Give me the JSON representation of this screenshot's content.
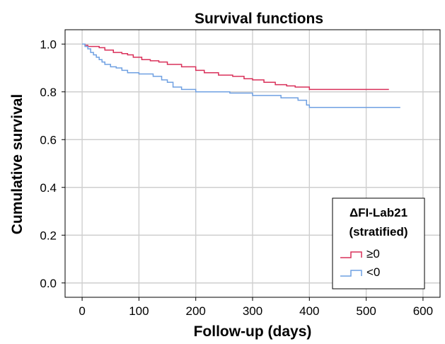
{
  "chart_data": {
    "type": "line",
    "title": "Survival functions",
    "xlabel": "Follow-up (days)",
    "ylabel": "Cumulative survival",
    "xlim": [
      -30,
      630
    ],
    "ylim": [
      -0.06,
      1.06
    ],
    "xticks": [
      0,
      100,
      200,
      300,
      400,
      500,
      600
    ],
    "yticks": [
      0.0,
      0.2,
      0.4,
      0.6,
      0.8,
      1.0
    ],
    "xtick_labels": [
      "0",
      "100",
      "200",
      "300",
      "400",
      "500",
      "600"
    ],
    "ytick_labels": [
      "0.0",
      "0.2",
      "0.4",
      "0.6",
      "0.8",
      "1.0"
    ],
    "grid": true,
    "legend": {
      "title_line1": "ΔFI-Lab21",
      "title_line2": "(stratified)",
      "placement": "bottom-right"
    },
    "series": [
      {
        "name": "≥0",
        "color": "#d9305a",
        "step": true,
        "x": [
          0,
          5,
          10,
          30,
          40,
          55,
          70,
          80,
          90,
          105,
          120,
          135,
          150,
          175,
          200,
          215,
          240,
          265,
          285,
          300,
          320,
          340,
          360,
          375,
          400,
          540
        ],
        "y": [
          1.0,
          0.995,
          0.99,
          0.985,
          0.975,
          0.965,
          0.96,
          0.955,
          0.945,
          0.935,
          0.93,
          0.925,
          0.915,
          0.905,
          0.89,
          0.88,
          0.87,
          0.865,
          0.855,
          0.85,
          0.84,
          0.83,
          0.825,
          0.82,
          0.81,
          0.81
        ]
      },
      {
        "name": "<0",
        "color": "#6fa0e2",
        "step": true,
        "x": [
          0,
          5,
          10,
          15,
          20,
          25,
          30,
          35,
          40,
          50,
          60,
          70,
          80,
          100,
          125,
          140,
          150,
          160,
          175,
          200,
          260,
          300,
          350,
          380,
          395,
          400,
          560
        ],
        "y": [
          1.0,
          0.99,
          0.98,
          0.965,
          0.955,
          0.945,
          0.935,
          0.925,
          0.915,
          0.905,
          0.9,
          0.89,
          0.88,
          0.875,
          0.865,
          0.85,
          0.84,
          0.82,
          0.81,
          0.8,
          0.795,
          0.785,
          0.775,
          0.765,
          0.745,
          0.735,
          0.735
        ]
      }
    ]
  }
}
